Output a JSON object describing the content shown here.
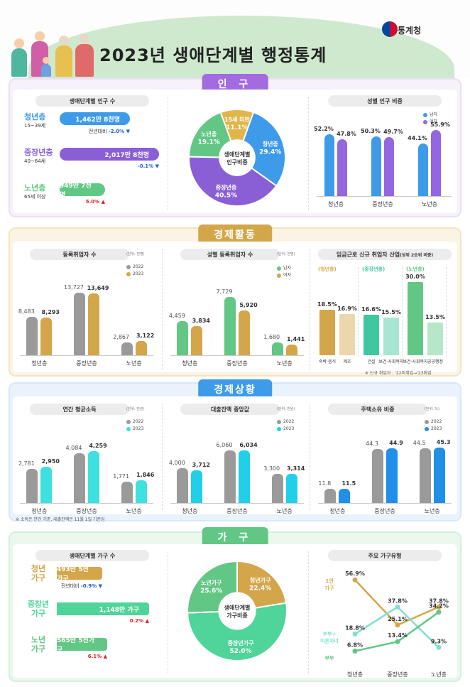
{
  "title": "2023년 생애단계별 행정통계",
  "org": "통계청",
  "population": {
    "section": "인 구",
    "left_title": "생애단계별 인구 수",
    "rows": [
      {
        "name": "청년층",
        "range": "15~39세",
        "value": "1,462만 8천명",
        "change_label": "전년대비",
        "change": "-2.0%",
        "dir": "down",
        "share": 0.51
      },
      {
        "name": "중장년층",
        "range": "40~64세",
        "value": "2,017만 8천명",
        "change_label": "",
        "change": "-0.1%",
        "dir": "down",
        "share": 0.72
      },
      {
        "name": "노년층",
        "range": "65세 이상",
        "value": "949만 7천명",
        "change_label": "",
        "change": "5.0%",
        "dir": "up",
        "share": 0.33
      }
    ],
    "donut": {
      "center": "생애단계별 인구비중",
      "slices": [
        {
          "name": "15세 미만",
          "value": 11.1,
          "label": "11.1%",
          "color": "#e0b54a"
        },
        {
          "name": "청년층",
          "value": 29.4,
          "label": "29.4%",
          "color": "#3d9be9"
        },
        {
          "name": "중장년층",
          "value": 40.5,
          "label": "40.5%",
          "color": "#8a5fd6"
        },
        {
          "name": "노년층",
          "value": 19.1,
          "label": "19.1%",
          "color": "#62c784"
        }
      ]
    },
    "gender": {
      "title": "성별 인구 비중",
      "legend": [
        "남자",
        "여자"
      ],
      "colors": [
        "#3d9be9",
        "#9466e0"
      ],
      "categories": [
        "청년층",
        "중장년층",
        "노년층"
      ],
      "male": [
        52.2,
        50.3,
        44.1
      ],
      "female": [
        47.8,
        49.7,
        55.9
      ],
      "male_labels": [
        "52.2%",
        "50.3%",
        "44.1%"
      ],
      "female_labels": [
        "47.8%",
        "49.7%",
        "55.9%"
      ]
    }
  },
  "economic": {
    "section": "경제활동",
    "employ": {
      "title": "등록취업자 수",
      "unit": "(단위: 천명)",
      "legend": [
        "2022",
        "2023"
      ],
      "colors": [
        "#9a9a9a",
        "#d4a64a"
      ],
      "categories": [
        "청년층",
        "중장년층",
        "노년층"
      ],
      "y2022": [
        8483,
        13727,
        2867
      ],
      "y2023": [
        8293,
        13649,
        3122
      ],
      "l2022": [
        "8,483",
        "13,727",
        "2,867"
      ],
      "l2023": [
        "8,293",
        "13,649",
        "3,122"
      ]
    },
    "gender": {
      "title": "성별 등록취업자 수",
      "unit": "(단위: 천명)",
      "legend": [
        "남자",
        "여자"
      ],
      "colors": [
        "#62c784",
        "#d4a64a"
      ],
      "categories": [
        "청년층",
        "중장년층",
        "노년층"
      ],
      "male": [
        4459,
        7729,
        1680
      ],
      "female": [
        3834,
        5920,
        1441
      ],
      "lmale": [
        "4,459",
        "7,729",
        "1,680"
      ],
      "lfemale": [
        "3,834",
        "5,920",
        "1,441"
      ]
    },
    "industry": {
      "title": "임금근로 신규 취업자 산업",
      "subtitle": "(상위 2순위 비중)",
      "groups": [
        {
          "name": "(청년층)",
          "color": "#d4a64a",
          "items": [
            {
              "ind": "숙박·음식",
              "value": 18.5,
              "label": "18.5%"
            },
            {
              "ind": "제조",
              "value": 16.9,
              "label": "16.9%"
            }
          ]
        },
        {
          "name": "(중장년층)",
          "color": "#3fc7a0",
          "items": [
            {
              "ind": "건설",
              "value": 16.6,
              "label": "16.6%"
            },
            {
              "ind": "보건·사회복지",
              "value": 15.5,
              "label": "15.5%"
            }
          ]
        },
        {
          "name": "(노년층)",
          "color": "#62c784",
          "items": [
            {
              "ind": "보건·사회복지",
              "value": 30.0,
              "label": "30.0%"
            },
            {
              "ind": "공공행정",
              "value": 13.5,
              "label": "13.5%"
            }
          ]
        }
      ],
      "note": "※ 신규 취업자 : '22미취업→'23취업"
    }
  },
  "finance": {
    "section": "경제상황",
    "income": {
      "title": "연간 평균소득",
      "unit": "(단위: 만원)",
      "legend": [
        "2022",
        "2023"
      ],
      "colors": [
        "#9a9a9a",
        "#3fe0e0"
      ],
      "categories": [
        "청년층",
        "중장년층",
        "노년층"
      ],
      "y2022": [
        2781,
        4084,
        1771
      ],
      "y2023": [
        2950,
        4259,
        1846
      ],
      "l2022": [
        "2,781",
        "4,084",
        "1,771"
      ],
      "l2023": [
        "2,950",
        "4,259",
        "1,846"
      ]
    },
    "debt": {
      "title": "대출잔액 중앙값",
      "unit": "(단위: 만원)",
      "legend": [
        "2022",
        "2023"
      ],
      "colors": [
        "#9a9a9a",
        "#1fd0e8"
      ],
      "categories": [
        "청년층",
        "중장년층",
        "노년층"
      ],
      "y2022": [
        4000,
        6060,
        3300
      ],
      "y2023": [
        3712,
        6034,
        3314
      ],
      "l2022": [
        "4,000",
        "6,060",
        "3,300"
      ],
      "l2023": [
        "3,712",
        "6,034",
        "3,314"
      ]
    },
    "house": {
      "title": "주택소유 비중",
      "unit": "(단위: %)",
      "legend": [
        "2022",
        "2023"
      ],
      "colors": [
        "#9a9a9a",
        "#1f8fe8"
      ],
      "categories": [
        "청년층",
        "중장년층",
        "노년층"
      ],
      "y2022": [
        11.8,
        44.3,
        44.5
      ],
      "y2023": [
        11.5,
        44.9,
        45.3
      ],
      "l2022": [
        "11.8",
        "44.3",
        "44.5"
      ],
      "l2023": [
        "11.5",
        "44.9",
        "45.3"
      ]
    },
    "note": "※ 소득은 연간 기준, 대출잔액은 11월 1일 기준임"
  },
  "household": {
    "section": "가 구",
    "left_title": "생애단계별 가구 수",
    "rows": [
      {
        "name": "청년 가구",
        "value": "493만 5천가구",
        "change_label": "전년대비",
        "change": "-0.9%",
        "dir": "down",
        "share": 0.43,
        "color": "#d4a64a"
      },
      {
        "name": "중장년 가구",
        "value": "1,148만 가구",
        "change_label": "",
        "change": "0.2%",
        "dir": "up",
        "share": 0.88,
        "color": "#4fd49a"
      },
      {
        "name": "노년 가구",
        "value": "565만 5천가구",
        "change_label": "",
        "change": "6.1%",
        "dir": "up",
        "share": 0.48,
        "color": "#62c784"
      }
    ],
    "donut": {
      "center": "생애단계별 가구비중",
      "slices": [
        {
          "name": "청년가구",
          "value": 22.4,
          "label": "22.4%",
          "color": "#d4a64a"
        },
        {
          "name": "중장년가구",
          "value": 52.0,
          "label": "52.0%",
          "color": "#4fd49a"
        },
        {
          "name": "노년가구",
          "value": 25.6,
          "label": "25.6%",
          "color": "#62c784"
        }
      ]
    },
    "types": {
      "title": "주요 가구유형",
      "categories": [
        "청년층",
        "중장년층",
        "노년층"
      ],
      "series": [
        {
          "name": "1인 가구",
          "values": [
            56.9,
            25.1,
            37.8
          ],
          "labels": [
            "56.9%",
            "25.1%",
            "37.8%"
          ],
          "color": "#d4a64a"
        },
        {
          "name": "부부+ 미혼자녀",
          "values": [
            18.8,
            37.8,
            9.3
          ],
          "labels": [
            "18.8%",
            "37.8%",
            "9.3%"
          ],
          "color": "#7fe0d0"
        },
        {
          "name": "부부",
          "values": [
            6.8,
            13.4,
            34.2
          ],
          "labels": [
            "6.8%",
            "13.4%",
            "34.2%"
          ],
          "color": "#62c784"
        }
      ]
    }
  }
}
